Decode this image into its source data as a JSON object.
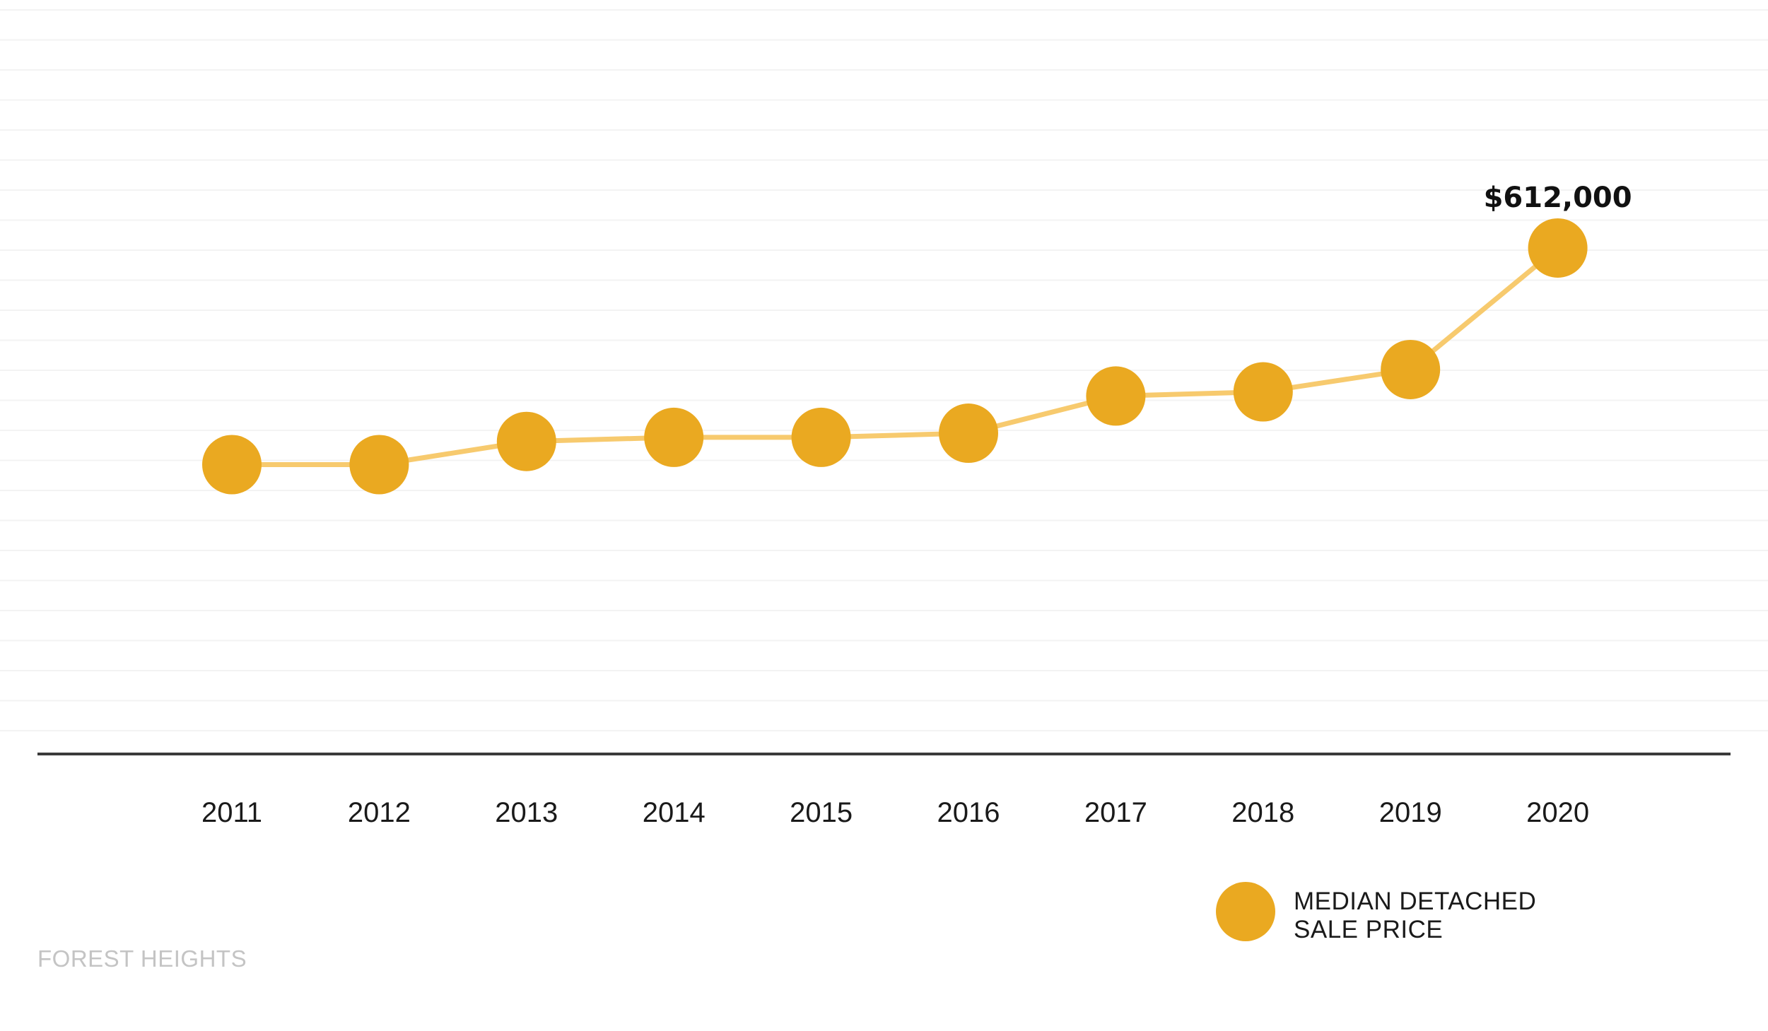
{
  "chart_data": {
    "type": "line",
    "title": "",
    "xlabel": "",
    "ylabel": "",
    "x": [
      "2011",
      "2012",
      "2013",
      "2014",
      "2015",
      "2016",
      "2017",
      "2018",
      "2019",
      "2020"
    ],
    "series": [
      {
        "name": "MEDIAN DETACHED SALE PRICE",
        "values": [
          350000,
          350000,
          378000,
          383000,
          383000,
          388000,
          433000,
          438000,
          465000,
          612000
        ],
        "color": "#EAA921",
        "line_color": "#F7CA6E"
      }
    ],
    "annotations": [
      {
        "x": "2020",
        "text": "$612,000"
      }
    ],
    "ylim": [
      0,
      1000000
    ],
    "y_axis_visible": false,
    "grid": true,
    "legend_position": "bottom-right"
  },
  "legend": {
    "line1": "MEDIAN DETACHED",
    "line2": "SALE PRICE"
  },
  "footer": {
    "label": "FOREST HEIGHTS"
  }
}
